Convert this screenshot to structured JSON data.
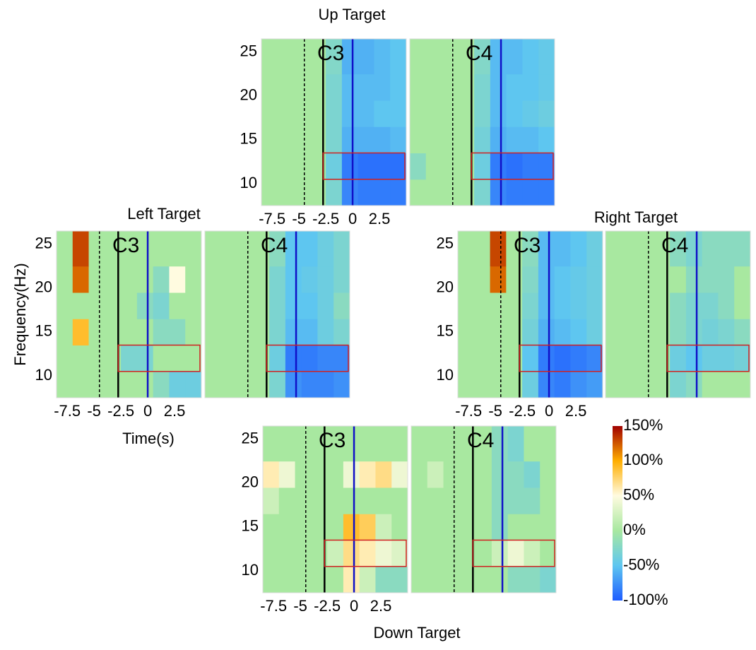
{
  "chart_data": {
    "type": "heatmap",
    "xlim": [
      -8.5,
      5
    ],
    "ylim": [
      7.5,
      26.5
    ],
    "xticks": [
      -7.5,
      -5,
      -2.5,
      0,
      2.5
    ],
    "yticks": [
      10,
      15,
      20,
      25
    ],
    "xlabel": "Time(s)",
    "ylabel": "Frequency(Hz)",
    "time_edges": [
      -8.5,
      -7,
      -5.5,
      -4,
      -2.5,
      -1,
      0.5,
      2,
      3.5,
      5
    ],
    "freq_edges": [
      7.5,
      10.5,
      13.5,
      16.5,
      19.5,
      22.5,
      26.5
    ],
    "events": [
      {
        "value": -4.5,
        "color": "#000000",
        "dashed": true
      },
      {
        "value": -2.75,
        "color": "#000000",
        "dashed": false
      },
      {
        "value": 0,
        "color": "#1010c8",
        "dashed": false
      }
    ],
    "roi": {
      "time": [
        -2.75,
        5
      ],
      "freq": [
        10.5,
        13.5
      ],
      "color": "#d02020"
    },
    "colorbar": {
      "range": [
        -100,
        150
      ],
      "stops": [
        -100,
        -50,
        0,
        50,
        100,
        150
      ],
      "colors": [
        "#1e5cff",
        "#5ec6f0",
        "#a8e8a0",
        "#fffbe0",
        "#ffae00",
        "#a00000"
      ],
      "ticks": [
        {
          "value": 150,
          "label": "150%"
        },
        {
          "value": 100,
          "label": "100%"
        },
        {
          "value": 50,
          "label": "50%"
        },
        {
          "value": 0,
          "label": "0%"
        },
        {
          "value": -50,
          "label": "-50%"
        },
        {
          "value": -100,
          "label": "-100%"
        }
      ]
    },
    "groups": [
      {
        "title": "Up Target",
        "panels": [
          {
            "channel": "C3",
            "values": [
              [
                0,
                0,
                0,
                0,
                -30,
                -80,
                -85,
                -85,
                -85
              ],
              [
                0,
                0,
                0,
                0,
                -40,
                -85,
                -90,
                -90,
                -90
              ],
              [
                0,
                0,
                0,
                0,
                -30,
                -60,
                -60,
                -60,
                -55
              ],
              [
                0,
                0,
                0,
                0,
                -30,
                -55,
                -55,
                -50,
                -50
              ],
              [
                0,
                0,
                0,
                0,
                -30,
                -55,
                -55,
                -55,
                -50
              ],
              [
                0,
                0,
                0,
                0,
                -25,
                -60,
                -60,
                -55,
                -50
              ]
            ]
          },
          {
            "channel": "C4",
            "values": [
              [
                0,
                0,
                0,
                0,
                -30,
                -80,
                -85,
                -85,
                -85
              ],
              [
                -20,
                0,
                0,
                0,
                -40,
                -85,
                -90,
                -85,
                -85
              ],
              [
                0,
                0,
                0,
                0,
                -35,
                -60,
                -55,
                -55,
                -50
              ],
              [
                0,
                0,
                0,
                0,
                -30,
                -55,
                -50,
                -45,
                -40
              ],
              [
                0,
                0,
                0,
                0,
                -30,
                -55,
                -50,
                -50,
                -45
              ],
              [
                0,
                0,
                0,
                0,
                -25,
                -55,
                -55,
                -50,
                -45
              ]
            ]
          }
        ]
      },
      {
        "title": "Left Target",
        "panels": [
          {
            "channel": "C3",
            "values": [
              [
                0,
                0,
                0,
                0,
                0,
                0,
                -20,
                -40,
                -40
              ],
              [
                0,
                0,
                0,
                0,
                -30,
                -30,
                0,
                0,
                0
              ],
              [
                0,
                90,
                0,
                0,
                0,
                0,
                -20,
                -20,
                0
              ],
              [
                0,
                0,
                0,
                0,
                0,
                -20,
                -30,
                0,
                0
              ],
              [
                0,
                120,
                0,
                0,
                0,
                0,
                -20,
                50,
                0
              ],
              [
                0,
                130,
                0,
                0,
                0,
                0,
                0,
                0,
                0
              ]
            ]
          },
          {
            "channel": "C4",
            "values": [
              [
                0,
                0,
                0,
                0,
                -30,
                -75,
                -80,
                -80,
                -75
              ],
              [
                0,
                0,
                0,
                0,
                -40,
                -85,
                -85,
                -80,
                -80
              ],
              [
                0,
                0,
                0,
                0,
                -30,
                -55,
                -55,
                -40,
                -30
              ],
              [
                0,
                0,
                0,
                0,
                -30,
                -50,
                -50,
                -40,
                -20
              ],
              [
                0,
                0,
                0,
                0,
                -30,
                -50,
                -45,
                -40,
                -30
              ],
              [
                0,
                0,
                0,
                0,
                -20,
                -50,
                -50,
                -40,
                -30
              ]
            ]
          }
        ]
      },
      {
        "title": "Right Target",
        "panels": [
          {
            "channel": "C3",
            "values": [
              [
                0,
                0,
                0,
                0,
                -40,
                -80,
                -85,
                -75,
                -70
              ],
              [
                0,
                0,
                0,
                0,
                -50,
                -85,
                -90,
                -85,
                -80
              ],
              [
                0,
                0,
                0,
                0,
                -35,
                -60,
                -55,
                -50,
                -40
              ],
              [
                0,
                0,
                0,
                0,
                -30,
                -55,
                -50,
                -45,
                -40
              ],
              [
                0,
                0,
                120,
                0,
                -25,
                -55,
                -50,
                -45,
                -40
              ],
              [
                0,
                0,
                130,
                0,
                -20,
                -55,
                -55,
                -50,
                -40
              ]
            ]
          },
          {
            "channel": "C4",
            "values": [
              [
                0,
                0,
                0,
                0,
                -30,
                -20,
                0,
                0,
                0
              ],
              [
                0,
                0,
                0,
                0,
                -40,
                -50,
                -40,
                -40,
                -35
              ],
              [
                0,
                0,
                0,
                0,
                -20,
                -30,
                -35,
                -30,
                -20
              ],
              [
                0,
                0,
                0,
                0,
                -20,
                -30,
                -30,
                -20,
                0
              ],
              [
                0,
                0,
                0,
                0,
                0,
                -20,
                -20,
                -20,
                0
              ],
              [
                0,
                0,
                0,
                0,
                -20,
                -30,
                -20,
                -20,
                -20
              ]
            ]
          }
        ]
      },
      {
        "title": "Down Target",
        "panels": [
          {
            "channel": "C3",
            "values": [
              [
                0,
                0,
                0,
                0,
                0,
                60,
                20,
                -20,
                -20
              ],
              [
                0,
                0,
                0,
                0,
                20,
                70,
                60,
                40,
                30
              ],
              [
                0,
                0,
                0,
                0,
                0,
                90,
                80,
                20,
                0
              ],
              [
                20,
                0,
                0,
                0,
                0,
                0,
                0,
                0,
                0
              ],
              [
                60,
                40,
                0,
                0,
                0,
                40,
                60,
                70,
                40
              ],
              [
                0,
                0,
                0,
                0,
                0,
                0,
                0,
                0,
                0
              ]
            ]
          },
          {
            "channel": "C4",
            "values": [
              [
                0,
                0,
                0,
                0,
                0,
                0,
                -20,
                -20,
                -30
              ],
              [
                0,
                0,
                0,
                0,
                0,
                20,
                40,
                20,
                0
              ],
              [
                0,
                0,
                0,
                0,
                0,
                -20,
                0,
                0,
                0
              ],
              [
                0,
                0,
                0,
                0,
                0,
                -20,
                -20,
                -20,
                0
              ],
              [
                0,
                20,
                0,
                0,
                0,
                -20,
                -20,
                -30,
                0
              ],
              [
                0,
                0,
                0,
                0,
                0,
                -20,
                -30,
                0,
                0
              ]
            ]
          }
        ]
      }
    ]
  }
}
